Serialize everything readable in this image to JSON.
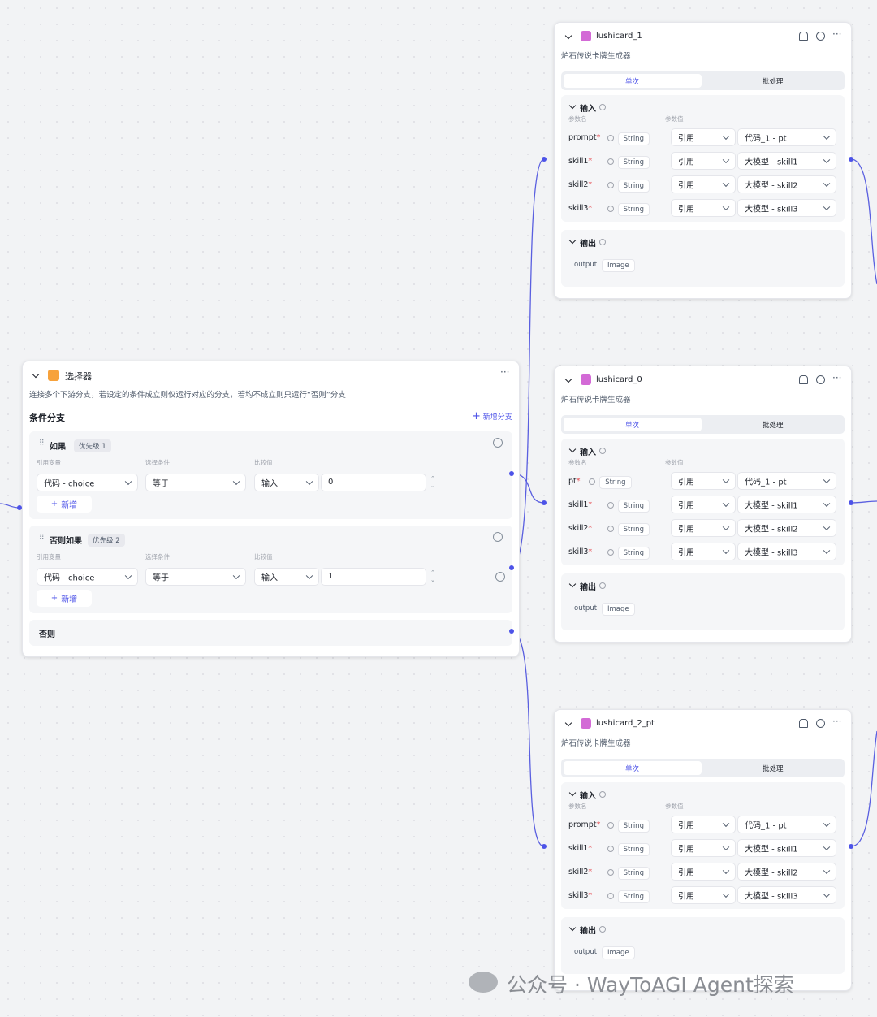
{
  "selector": {
    "title": "选择器",
    "description": "连接多个下游分支，若设定的条件成立则仅运行对应的分支，若均不成立则只运行“否则”分支",
    "section_title": "条件分支",
    "add_branch": "新增分支",
    "branches": [
      {
        "label": "如果",
        "priority": "优先级 1",
        "headers": [
          "引用变量",
          "选择条件",
          "比较值"
        ],
        "variable": "代码 - choice",
        "condition": "等于",
        "value_mode": "输入",
        "value": "0",
        "add": "新增"
      },
      {
        "label": "否则如果",
        "priority": "优先级 2",
        "headers": [
          "引用变量",
          "选择条件",
          "比较值"
        ],
        "variable": "代码 - choice",
        "condition": "等于",
        "value_mode": "输入",
        "value": "1",
        "add": "新增"
      }
    ],
    "else_label": "否则"
  },
  "required_mark": "*",
  "nodes": [
    {
      "name": "lushicard_1",
      "subtitle": "炉石传说卡牌生成器",
      "tabs": [
        "单次",
        "批处理"
      ],
      "input_title": "输入",
      "column_headers": [
        "参数名",
        "参数值"
      ],
      "params": [
        {
          "name": "prompt",
          "type": "String",
          "mode": "引用",
          "source": "代码_1 - pt"
        },
        {
          "name": "skill1",
          "type": "String",
          "mode": "引用",
          "source": "大模型 - skill1"
        },
        {
          "name": "skill2",
          "type": "String",
          "mode": "引用",
          "source": "大模型 - skill2"
        },
        {
          "name": "skill3",
          "type": "String",
          "mode": "引用",
          "source": "大模型 - skill3"
        }
      ],
      "output_title": "输出",
      "outputs": [
        {
          "name": "output",
          "type": "Image"
        }
      ]
    },
    {
      "name": "lushicard_0",
      "subtitle": "炉石传说卡牌生成器",
      "tabs": [
        "单次",
        "批处理"
      ],
      "input_title": "输入",
      "column_headers": [
        "参数名",
        "参数值"
      ],
      "params": [
        {
          "name": "pt",
          "type": "String",
          "mode": "引用",
          "source": "代码_1 - pt"
        },
        {
          "name": "skill1",
          "type": "String",
          "mode": "引用",
          "source": "大模型 - skill1"
        },
        {
          "name": "skill2",
          "type": "String",
          "mode": "引用",
          "source": "大模型 - skill2"
        },
        {
          "name": "skill3",
          "type": "String",
          "mode": "引用",
          "source": "大模型 - skill3"
        }
      ],
      "output_title": "输出",
      "outputs": [
        {
          "name": "output",
          "type": "Image"
        }
      ]
    },
    {
      "name": "lushicard_2_pt",
      "subtitle": "炉石传说卡牌生成器",
      "tabs": [
        "单次",
        "批处理"
      ],
      "input_title": "输入",
      "column_headers": [
        "参数名",
        "参数值"
      ],
      "params": [
        {
          "name": "prompt",
          "type": "String",
          "mode": "引用",
          "source": "代码_1 - pt"
        },
        {
          "name": "skill1",
          "type": "String",
          "mode": "引用",
          "source": "大模型 - skill1"
        },
        {
          "name": "skill2",
          "type": "String",
          "mode": "引用",
          "source": "大模型 - skill2"
        },
        {
          "name": "skill3",
          "type": "String",
          "mode": "引用",
          "source": "大模型 - skill3"
        }
      ],
      "output_title": "输出",
      "outputs": [
        {
          "name": "output",
          "type": "Image"
        }
      ]
    }
  ],
  "watermark": "公众号 · WayToAGI Agent探索"
}
